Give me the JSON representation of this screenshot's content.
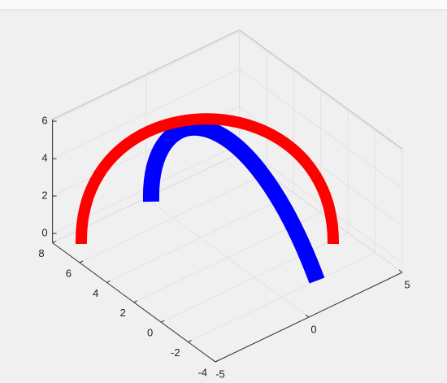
{
  "chart_data": {
    "type": "surface3d",
    "xlim": [
      -5,
      5
    ],
    "xticks": [
      -5,
      0,
      5
    ],
    "ylim": [
      -4,
      8
    ],
    "yticks": [
      -4,
      -2,
      0,
      2,
      4,
      6,
      8
    ],
    "zlim": [
      -0.5,
      6.1
    ],
    "zticks": [
      0,
      2,
      4,
      6
    ],
    "grid": true,
    "box": true,
    "series": [
      {
        "color": "#0000ff"
      },
      {
        "color": "#ff0000"
      }
    ]
  }
}
